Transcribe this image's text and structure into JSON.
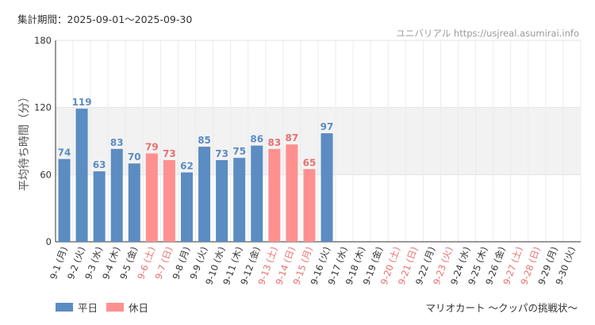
{
  "header": {
    "period": "集計期間：2025-09-01～2025-09-30",
    "brand": "ユニバリアル  https://usjreal.asumirai.info"
  },
  "legend": {
    "weekday_label": "平日",
    "holiday_label": "休日"
  },
  "footer": {
    "attraction": "マリオカート ～クッパの挑戦状～"
  },
  "colors": {
    "weekday": "#5b8cc2",
    "holiday": "#ff9090",
    "holiday_text": "#e87070",
    "band": "#f2f2f2"
  },
  "chart_data": {
    "type": "bar",
    "title": "",
    "ylabel": "平均待ち時間（分）",
    "ylim": [
      0,
      180
    ],
    "yticks": [
      0,
      60,
      120,
      180
    ],
    "band": [
      60,
      120
    ],
    "categories": [
      "9-1 (月)",
      "9-2 (火)",
      "9-3 (水)",
      "9-4 (木)",
      "9-5 (金)",
      "9-6 (土)",
      "9-7 (日)",
      "9-8 (月)",
      "9-9 (火)",
      "9-10 (水)",
      "9-11 (木)",
      "9-12 (金)",
      "9-13 (土)",
      "9-14 (日)",
      "9-15 (月)",
      "9-16 (火)",
      "9-17 (水)",
      "9-18 (木)",
      "9-19 (金)",
      "9-20 (土)",
      "9-21 (日)",
      "9-22 (月)",
      "9-23 (火)",
      "9-24 (水)",
      "9-25 (木)",
      "9-26 (金)",
      "9-27 (土)",
      "9-28 (日)",
      "9-29 (月)",
      "9-30 (火)"
    ],
    "values": [
      74,
      119,
      63,
      83,
      70,
      79,
      73,
      62,
      85,
      73,
      75,
      86,
      83,
      87,
      65,
      97,
      null,
      null,
      null,
      null,
      null,
      null,
      null,
      null,
      null,
      null,
      null,
      null,
      null,
      null
    ],
    "holiday": [
      false,
      false,
      false,
      false,
      false,
      true,
      true,
      false,
      false,
      false,
      false,
      false,
      true,
      true,
      true,
      false,
      false,
      false,
      false,
      true,
      true,
      false,
      true,
      false,
      false,
      false,
      true,
      true,
      false,
      false
    ]
  }
}
